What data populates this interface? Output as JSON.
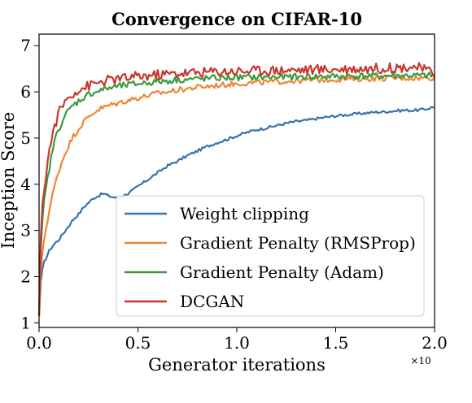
{
  "chart_data": {
    "type": "line",
    "title": "Convergence on CIFAR-10",
    "xlabel": "Generator iterations",
    "ylabel": "Inception Score",
    "x_multiplier_label": "×10",
    "xlim": [
      0.0,
      2.0
    ],
    "ylim": [
      0.9,
      7.25
    ],
    "xticks": [
      0.0,
      0.5,
      1.0,
      1.5,
      2.0
    ],
    "xtick_labels": [
      "0.0",
      "0.5",
      "1.0",
      "1.5",
      "2.0"
    ],
    "yticks": [
      1,
      2,
      3,
      4,
      5,
      6,
      7
    ],
    "ytick_labels": [
      "1",
      "2",
      "3",
      "4",
      "5",
      "6",
      "7"
    ],
    "grid": false,
    "legend_position": "lower-right",
    "series": [
      {
        "name": "Weight clipping",
        "color": "#3a72a8",
        "points": [
          [
            0.0,
            1.15
          ],
          [
            0.01,
            2.0
          ],
          [
            0.025,
            2.3
          ],
          [
            0.05,
            2.55
          ],
          [
            0.075,
            2.7
          ],
          [
            0.1,
            2.8
          ],
          [
            0.125,
            2.95
          ],
          [
            0.15,
            3.1
          ],
          [
            0.175,
            3.25
          ],
          [
            0.2,
            3.35
          ],
          [
            0.225,
            3.5
          ],
          [
            0.25,
            3.6
          ],
          [
            0.275,
            3.7
          ],
          [
            0.3,
            3.75
          ],
          [
            0.325,
            3.8
          ],
          [
            0.35,
            3.75
          ],
          [
            0.375,
            3.72
          ],
          [
            0.4,
            3.7
          ],
          [
            0.425,
            3.75
          ],
          [
            0.45,
            3.8
          ],
          [
            0.5,
            3.95
          ],
          [
            0.55,
            4.1
          ],
          [
            0.6,
            4.25
          ],
          [
            0.65,
            4.4
          ],
          [
            0.7,
            4.5
          ],
          [
            0.75,
            4.62
          ],
          [
            0.8,
            4.72
          ],
          [
            0.85,
            4.82
          ],
          [
            0.9,
            4.9
          ],
          [
            0.95,
            4.97
          ],
          [
            1.0,
            5.05
          ],
          [
            1.05,
            5.12
          ],
          [
            1.1,
            5.18
          ],
          [
            1.15,
            5.22
          ],
          [
            1.2,
            5.27
          ],
          [
            1.25,
            5.32
          ],
          [
            1.3,
            5.36
          ],
          [
            1.35,
            5.38
          ],
          [
            1.4,
            5.42
          ],
          [
            1.45,
            5.45
          ],
          [
            1.5,
            5.48
          ],
          [
            1.55,
            5.5
          ],
          [
            1.6,
            5.52
          ],
          [
            1.65,
            5.54
          ],
          [
            1.7,
            5.56
          ],
          [
            1.75,
            5.57
          ],
          [
            1.8,
            5.59
          ],
          [
            1.85,
            5.6
          ],
          [
            1.9,
            5.6
          ],
          [
            1.95,
            5.62
          ],
          [
            2.0,
            5.68
          ]
        ]
      },
      {
        "name": "Gradient Penalty (RMSProp)",
        "color": "#ef8636",
        "points": [
          [
            0.0,
            1.15
          ],
          [
            0.01,
            2.2
          ],
          [
            0.025,
            2.8
          ],
          [
            0.05,
            3.4
          ],
          [
            0.075,
            3.9
          ],
          [
            0.1,
            4.3
          ],
          [
            0.125,
            4.6
          ],
          [
            0.15,
            4.85
          ],
          [
            0.175,
            5.05
          ],
          [
            0.2,
            5.2
          ],
          [
            0.225,
            5.35
          ],
          [
            0.25,
            5.45
          ],
          [
            0.275,
            5.55
          ],
          [
            0.3,
            5.62
          ],
          [
            0.35,
            5.7
          ],
          [
            0.4,
            5.76
          ],
          [
            0.45,
            5.82
          ],
          [
            0.5,
            5.87
          ],
          [
            0.55,
            5.92
          ],
          [
            0.6,
            5.97
          ],
          [
            0.65,
            6.0
          ],
          [
            0.7,
            6.04
          ],
          [
            0.75,
            6.07
          ],
          [
            0.8,
            6.1
          ],
          [
            0.85,
            6.12
          ],
          [
            0.9,
            6.14
          ],
          [
            0.95,
            6.16
          ],
          [
            1.0,
            6.18
          ],
          [
            1.1,
            6.2
          ],
          [
            1.2,
            6.22
          ],
          [
            1.3,
            6.24
          ],
          [
            1.4,
            6.26
          ],
          [
            1.5,
            6.27
          ],
          [
            1.6,
            6.28
          ],
          [
            1.7,
            6.29
          ],
          [
            1.8,
            6.3
          ],
          [
            1.9,
            6.3
          ],
          [
            2.0,
            6.31
          ]
        ]
      },
      {
        "name": "Gradient Penalty (Adam)",
        "color": "#3d9a3d",
        "points": [
          [
            0.0,
            1.15
          ],
          [
            0.01,
            2.8
          ],
          [
            0.025,
            3.6
          ],
          [
            0.05,
            4.3
          ],
          [
            0.075,
            4.9
          ],
          [
            0.1,
            5.2
          ],
          [
            0.125,
            5.45
          ],
          [
            0.15,
            5.6
          ],
          [
            0.175,
            5.72
          ],
          [
            0.2,
            5.8
          ],
          [
            0.225,
            5.88
          ],
          [
            0.25,
            5.95
          ],
          [
            0.3,
            6.02
          ],
          [
            0.35,
            6.08
          ],
          [
            0.4,
            6.12
          ],
          [
            0.45,
            6.15
          ],
          [
            0.5,
            6.18
          ],
          [
            0.6,
            6.22
          ],
          [
            0.7,
            6.26
          ],
          [
            0.8,
            6.28
          ],
          [
            0.9,
            6.3
          ],
          [
            1.0,
            6.31
          ],
          [
            1.2,
            6.32
          ],
          [
            1.4,
            6.33
          ],
          [
            1.6,
            6.34
          ],
          [
            1.8,
            6.35
          ],
          [
            2.0,
            6.35
          ]
        ]
      },
      {
        "name": "DCGAN",
        "color": "#c8372d",
        "points": [
          [
            0.0,
            1.15
          ],
          [
            0.01,
            3.1
          ],
          [
            0.025,
            3.9
          ],
          [
            0.05,
            4.7
          ],
          [
            0.075,
            5.2
          ],
          [
            0.1,
            5.55
          ],
          [
            0.125,
            5.75
          ],
          [
            0.15,
            5.88
          ],
          [
            0.175,
            5.98
          ],
          [
            0.2,
            6.05
          ],
          [
            0.25,
            6.13
          ],
          [
            0.3,
            6.2
          ],
          [
            0.35,
            6.25
          ],
          [
            0.4,
            6.28
          ],
          [
            0.5,
            6.33
          ],
          [
            0.6,
            6.37
          ],
          [
            0.7,
            6.4
          ],
          [
            0.8,
            6.42
          ],
          [
            0.9,
            6.44
          ],
          [
            1.0,
            6.45
          ],
          [
            1.2,
            6.47
          ],
          [
            1.4,
            6.48
          ],
          [
            1.6,
            6.5
          ],
          [
            1.8,
            6.52
          ],
          [
            1.9,
            6.55
          ],
          [
            2.0,
            6.4
          ]
        ]
      }
    ]
  }
}
